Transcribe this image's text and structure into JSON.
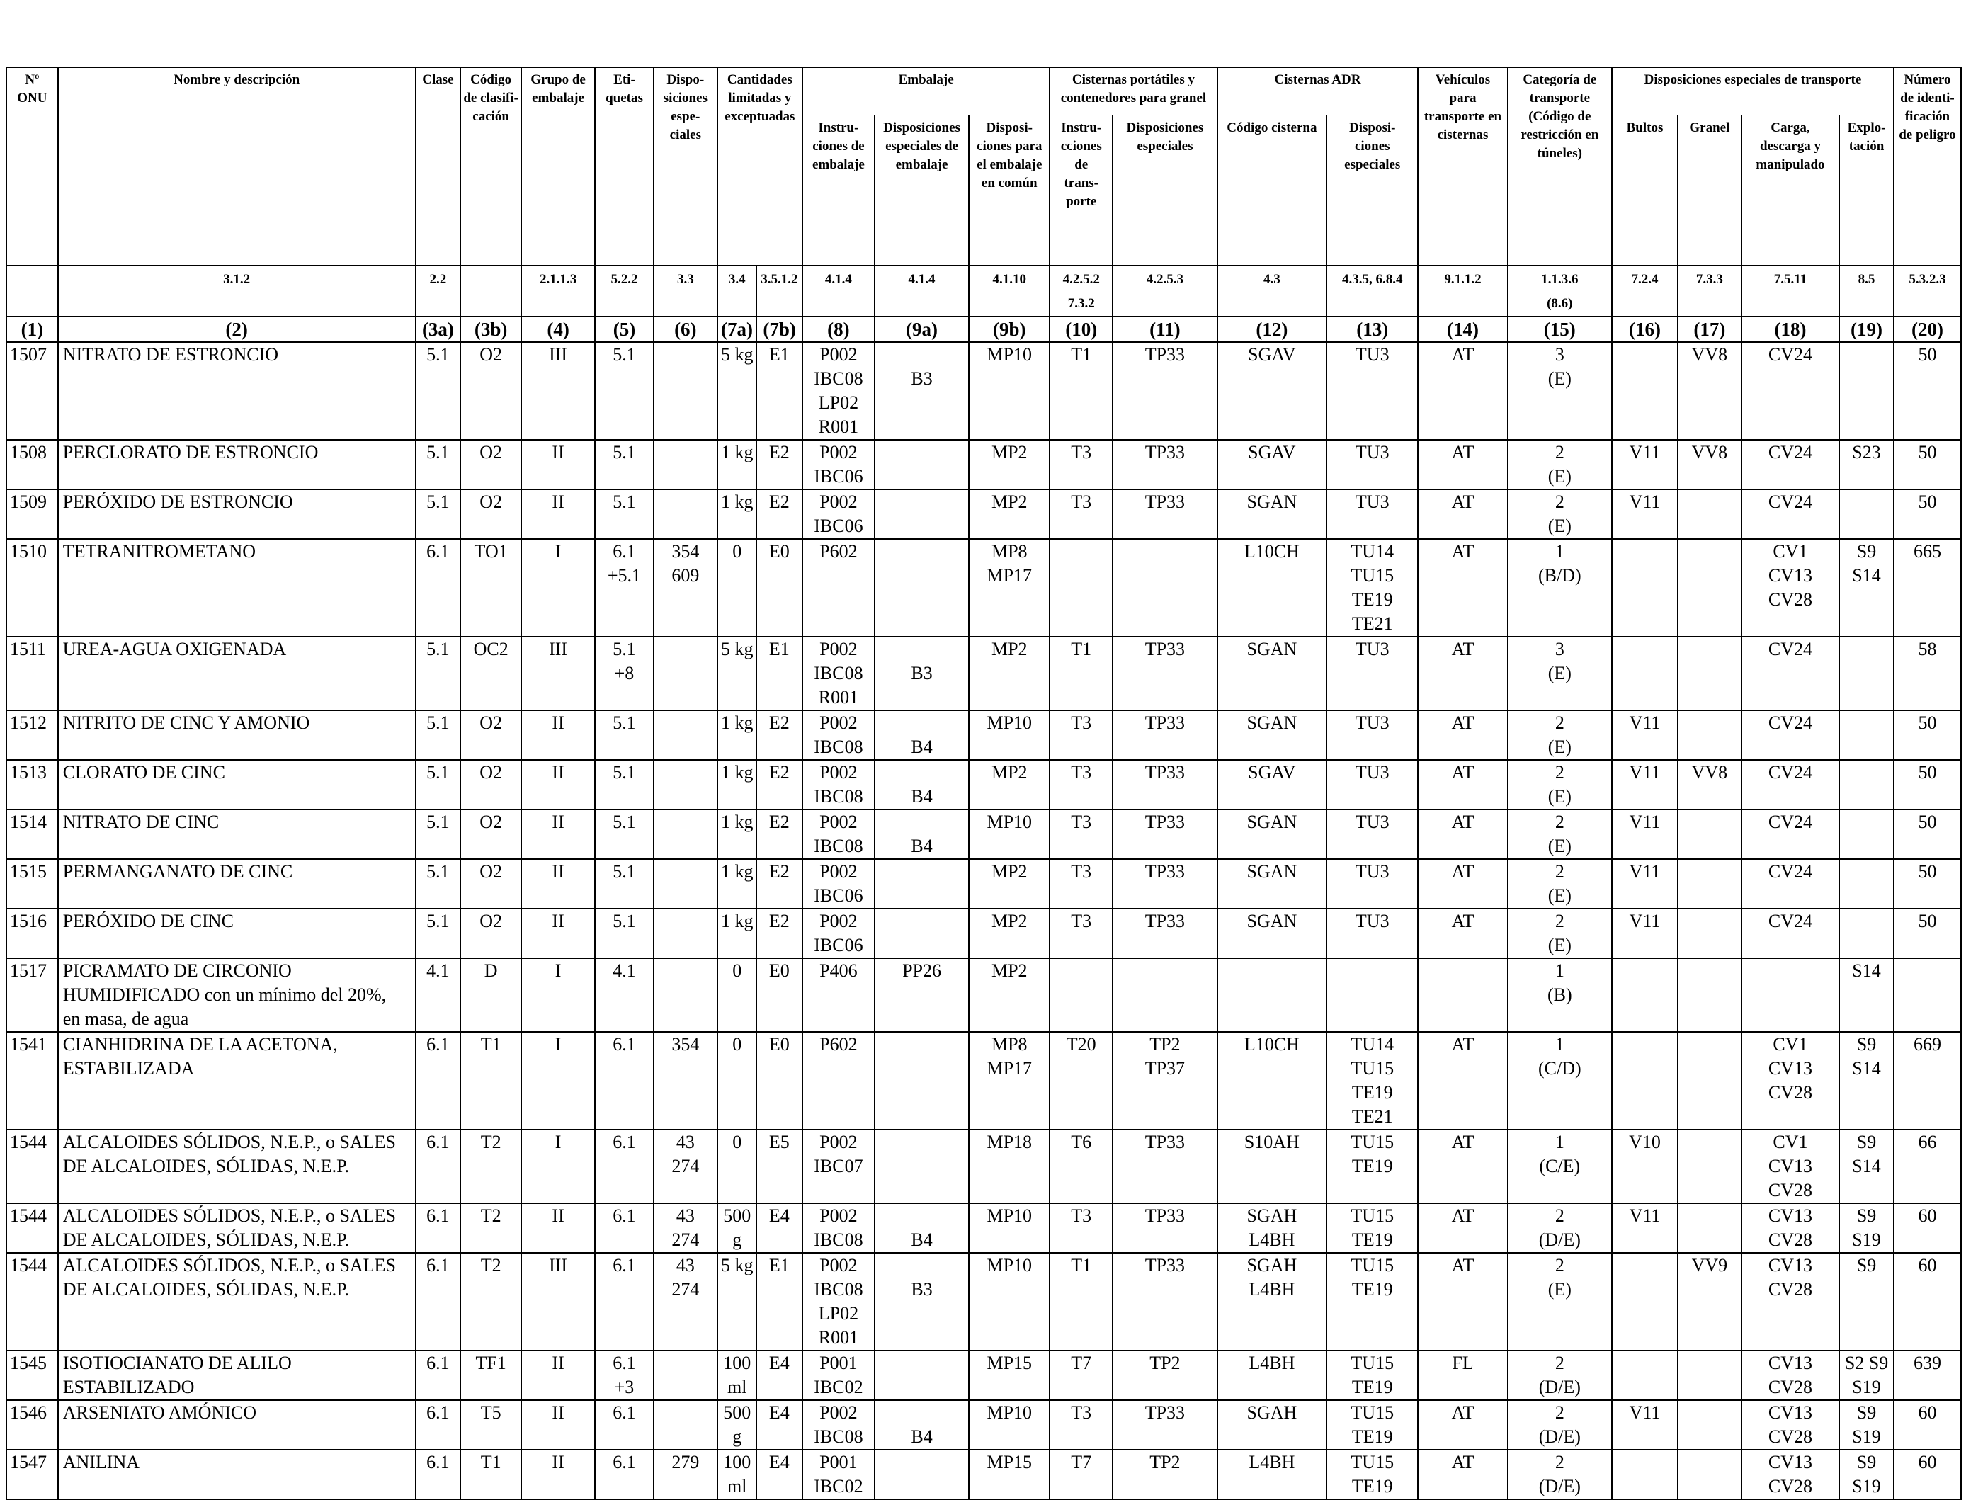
{
  "headers": {
    "onu": "Nº\nONU",
    "nombre": "Nombre y descripción",
    "clase": "Clase",
    "codigo": "Código\nde clasifi-\ncación",
    "grupo": "Grupo de\nembalaje",
    "etiquetas": "Eti-\nquetas",
    "disposiciones": "Dispo-\nsiciones\nespe-\nciales",
    "cantidades": "Cantidades\nlimitadas y\nexceptuadas",
    "embalaje": "Embalaje",
    "embalaje_instr": "Instru-\nciones de\nembalaje",
    "embalaje_disp": "Disposiciones\nespeciales de\nembalaje",
    "embalaje_comun": "Disposi-\nciones para\nel embalaje\nen común",
    "cisternas_port": "Cisternas portátiles y\ncontenedores para granel",
    "cisternas_instr": "Instru-\ncciones de\ntrans-\nporte",
    "cisternas_disp": "Disposiciones\nespeciales",
    "cisternas_adr": "Cisternas ADR",
    "adr_codigo": "Código cisterna",
    "adr_disp": "Disposi-\nciones\nespeciales",
    "vehiculos": "Vehículos\npara\ntransporte en\ncisternas",
    "categoria": "Categoría de\ntransporte\n(Código de\nrestricción en\ntúneles)",
    "disp_transporte": "Disposiciones especiales de transporte",
    "bultos": "Bultos",
    "granel": "Granel",
    "carga": "Carga,\ndescarga y\nmanipulado",
    "explotacion": "Explo-\ntación",
    "numero_peligro": "Número\nde identi-\nficación\nde peligro"
  },
  "refs": {
    "nombre": "3.1.2",
    "clase": "2.2",
    "grupo": "2.1.1.3",
    "etiquetas": "5.2.2",
    "disposiciones": "3.3",
    "c7a": "3.4",
    "c7b": "3.5.1.2",
    "c8": "4.1.4",
    "c9a": "4.1.4",
    "c9b": "4.1.10",
    "c10": "4.2.5.2\n7.3.2",
    "c11": "4.2.5.3",
    "c12": "4.3",
    "c13": "4.3.5, 6.8.4",
    "c14": "9.1.1.2",
    "c15": "1.1.3.6\n(8.6)",
    "c16": "7.2.4",
    "c17": "7.3.3",
    "c18": "7.5.11",
    "c19": "8.5",
    "c20": "5.3.2.3"
  },
  "col_numbers": [
    "(1)",
    "(2)",
    "(3a)",
    "(3b)",
    "(4)",
    "(5)",
    "(6)",
    "(7a)",
    "(7b)",
    "(8)",
    "(9a)",
    "(9b)",
    "(10)",
    "(11)",
    "(12)",
    "(13)",
    "(14)",
    "(15)",
    "(16)",
    "(17)",
    "(18)",
    "(19)",
    "(20)"
  ],
  "rows": [
    {
      "c1": "1507",
      "c2": "NITRATO DE ESTRONCIO",
      "c3a": "5.1",
      "c3b": "O2",
      "c4": "III",
      "c5": "5.1",
      "c6": "",
      "c7a": "5 kg",
      "c7b": "E1",
      "c8": "P002\nIBC08\nLP02\nR001",
      "c9a": "\nB3",
      "c9b": "MP10",
      "c10": "T1",
      "c11": "TP33",
      "c12": "SGAV",
      "c13": "TU3",
      "c14": "AT",
      "c15": "3\n(E)",
      "c16": "",
      "c17": "VV8",
      "c18": "CV24",
      "c19": "",
      "c20": "50"
    },
    {
      "c1": "1508",
      "c2": "PERCLORATO DE ESTRONCIO",
      "c3a": "5.1",
      "c3b": "O2",
      "c4": "II",
      "c5": "5.1",
      "c6": "",
      "c7a": "1 kg",
      "c7b": "E2",
      "c8": "P002\nIBC06",
      "c9a": "",
      "c9b": "MP2",
      "c10": "T3",
      "c11": "TP33",
      "c12": "SGAV",
      "c13": "TU3",
      "c14": "AT",
      "c15": "2\n(E)",
      "c16": "V11",
      "c17": "VV8",
      "c18": "CV24",
      "c19": "S23",
      "c20": "50"
    },
    {
      "c1": "1509",
      "c2": "PERÓXIDO DE ESTRONCIO",
      "c3a": "5.1",
      "c3b": "O2",
      "c4": "II",
      "c5": "5.1",
      "c6": "",
      "c7a": "1 kg",
      "c7b": "E2",
      "c8": "P002\nIBC06",
      "c9a": "",
      "c9b": "MP2",
      "c10": "T3",
      "c11": "TP33",
      "c12": "SGAN",
      "c13": "TU3",
      "c14": "AT",
      "c15": "2\n(E)",
      "c16": "V11",
      "c17": "",
      "c18": "CV24",
      "c19": "",
      "c20": "50"
    },
    {
      "c1": "1510",
      "c2": "TETRANITROMETANO",
      "c3a": "6.1",
      "c3b": "TO1",
      "c4": "I",
      "c5": "6.1\n+5.1",
      "c6": "354\n609",
      "c7a": "0",
      "c7b": "E0",
      "c8": "P602",
      "c9a": "",
      "c9b": "MP8\nMP17",
      "c10": "",
      "c11": "",
      "c12": "L10CH",
      "c13": "TU14\nTU15\nTE19\nTE21",
      "c14": "AT",
      "c15": "1\n(B/D)",
      "c16": "",
      "c17": "",
      "c18": "CV1\nCV13\nCV28",
      "c19": "S9\nS14",
      "c20": "665"
    },
    {
      "c1": "1511",
      "c2": "UREA-AGUA OXIGENADA",
      "c3a": "5.1",
      "c3b": "OC2",
      "c4": "III",
      "c5": "5.1\n+8",
      "c6": "",
      "c7a": "5 kg",
      "c7b": "E1",
      "c8": "P002\nIBC08\nR001",
      "c9a": "\nB3",
      "c9b": "MP2",
      "c10": "T1",
      "c11": "TP33",
      "c12": "SGAN",
      "c13": "TU3",
      "c14": "AT",
      "c15": "3\n(E)",
      "c16": "",
      "c17": "",
      "c18": "CV24",
      "c19": "",
      "c20": "58"
    },
    {
      "c1": "1512",
      "c2": "NITRITO DE CINC Y AMONIO",
      "c3a": "5.1",
      "c3b": "O2",
      "c4": "II",
      "c5": "5.1",
      "c6": "",
      "c7a": "1 kg",
      "c7b": "E2",
      "c8": "P002\nIBC08",
      "c9a": "\nB4",
      "c9b": "MP10",
      "c10": "T3",
      "c11": "TP33",
      "c12": "SGAN",
      "c13": "TU3",
      "c14": "AT",
      "c15": "2\n(E)",
      "c16": "V11",
      "c17": "",
      "c18": "CV24",
      "c19": "",
      "c20": "50"
    },
    {
      "c1": "1513",
      "c2": "CLORATO DE CINC",
      "c3a": "5.1",
      "c3b": "O2",
      "c4": "II",
      "c5": "5.1",
      "c6": "",
      "c7a": "1 kg",
      "c7b": "E2",
      "c8": "P002\nIBC08",
      "c9a": "\nB4",
      "c9b": "MP2",
      "c10": "T3",
      "c11": "TP33",
      "c12": "SGAV",
      "c13": "TU3",
      "c14": "AT",
      "c15": "2\n(E)",
      "c16": "V11",
      "c17": "VV8",
      "c18": "CV24",
      "c19": "",
      "c20": "50"
    },
    {
      "c1": "1514",
      "c2": "NITRATO DE CINC",
      "c3a": "5.1",
      "c3b": "O2",
      "c4": "II",
      "c5": "5.1",
      "c6": "",
      "c7a": "1 kg",
      "c7b": "E2",
      "c8": "P002\nIBC08",
      "c9a": "\nB4",
      "c9b": "MP10",
      "c10": "T3",
      "c11": "TP33",
      "c12": "SGAN",
      "c13": "TU3",
      "c14": "AT",
      "c15": "2\n(E)",
      "c16": "V11",
      "c17": "",
      "c18": "CV24",
      "c19": "",
      "c20": "50"
    },
    {
      "c1": "1515",
      "c2": "PERMANGANATO DE CINC",
      "c3a": "5.1",
      "c3b": "O2",
      "c4": "II",
      "c5": "5.1",
      "c6": "",
      "c7a": "1 kg",
      "c7b": "E2",
      "c8": "P002\nIBC06",
      "c9a": "",
      "c9b": "MP2",
      "c10": "T3",
      "c11": "TP33",
      "c12": "SGAN",
      "c13": "TU3",
      "c14": "AT",
      "c15": "2\n(E)",
      "c16": "V11",
      "c17": "",
      "c18": "CV24",
      "c19": "",
      "c20": "50"
    },
    {
      "c1": "1516",
      "c2": "PERÓXIDO DE CINC",
      "c3a": "5.1",
      "c3b": "O2",
      "c4": "II",
      "c5": "5.1",
      "c6": "",
      "c7a": "1 kg",
      "c7b": "E2",
      "c8": "P002\nIBC06",
      "c9a": "",
      "c9b": "MP2",
      "c10": "T3",
      "c11": "TP33",
      "c12": "SGAN",
      "c13": "TU3",
      "c14": "AT",
      "c15": "2\n(E)",
      "c16": "V11",
      "c17": "",
      "c18": "CV24",
      "c19": "",
      "c20": "50"
    },
    {
      "c1": "1517",
      "c2": "PICRAMATO DE CIRCONIO\nHUMIDIFICADO con un mínimo del 20%,\nen masa, de agua",
      "c3a": "4.1",
      "c3b": "D",
      "c4": "I",
      "c5": "4.1",
      "c6": "",
      "c7a": "0",
      "c7b": "E0",
      "c8": "P406",
      "c9a": "PP26",
      "c9b": "MP2",
      "c10": "",
      "c11": "",
      "c12": "",
      "c13": "",
      "c14": "",
      "c15": "1\n(B)",
      "c16": "",
      "c17": "",
      "c18": "",
      "c19": "S14",
      "c20": ""
    },
    {
      "c1": "1541",
      "c2": "CIANHIDRINA DE LA ACETONA,\nESTABILIZADA",
      "c3a": "6.1",
      "c3b": "T1",
      "c4": "I",
      "c5": "6.1",
      "c6": "354",
      "c7a": "0",
      "c7b": "E0",
      "c8": "P602",
      "c9a": "",
      "c9b": "MP8\nMP17",
      "c10": "T20",
      "c11": "TP2\nTP37",
      "c12": "L10CH",
      "c13": "TU14\nTU15\nTE19\nTE21",
      "c14": "AT",
      "c15": "1\n(C/D)",
      "c16": "",
      "c17": "",
      "c18": "CV1\nCV13\nCV28",
      "c19": "S9\nS14",
      "c20": "669"
    },
    {
      "c1": "1544",
      "c2": "ALCALOIDES SÓLIDOS, N.E.P., o SALES\nDE ALCALOIDES, SÓLIDAS, N.E.P.",
      "c3a": "6.1",
      "c3b": "T2",
      "c4": "I",
      "c5": "6.1",
      "c6": "43\n274",
      "c7a": "0",
      "c7b": "E5",
      "c8": "P002\nIBC07",
      "c9a": "",
      "c9b": "MP18",
      "c10": "T6",
      "c11": "TP33",
      "c12": "S10AH",
      "c13": "TU15\nTE19",
      "c14": "AT",
      "c15": "1\n(C/E)",
      "c16": "V10",
      "c17": "",
      "c18": "CV1\nCV13\nCV28",
      "c19": "S9\nS14",
      "c20": "66"
    },
    {
      "c1": "1544",
      "c2": "ALCALOIDES SÓLIDOS, N.E.P., o SALES\nDE ALCALOIDES, SÓLIDAS, N.E.P.",
      "c3a": "6.1",
      "c3b": "T2",
      "c4": "II",
      "c5": "6.1",
      "c6": "43\n274",
      "c7a": "500\ng",
      "c7b": "E4",
      "c8": "P002\nIBC08",
      "c9a": "\nB4",
      "c9b": "MP10",
      "c10": "T3",
      "c11": "TP33",
      "c12": "SGAH\nL4BH",
      "c13": "TU15\nTE19",
      "c14": "AT",
      "c15": "2\n(D/E)",
      "c16": "V11",
      "c17": "",
      "c18": "CV13\nCV28",
      "c19": "S9\nS19",
      "c20": "60"
    },
    {
      "c1": "1544",
      "c2": "ALCALOIDES SÓLIDOS, N.E.P., o SALES\nDE ALCALOIDES, SÓLIDAS, N.E.P.",
      "c3a": "6.1",
      "c3b": "T2",
      "c4": "III",
      "c5": "6.1",
      "c6": "43\n274",
      "c7a": "5 kg",
      "c7b": "E1",
      "c8": "P002\nIBC08\nLP02\nR001",
      "c9a": "\nB3",
      "c9b": "MP10",
      "c10": "T1",
      "c11": "TP33",
      "c12": "SGAH\nL4BH",
      "c13": "TU15\nTE19",
      "c14": "AT",
      "c15": "2\n(E)",
      "c16": "",
      "c17": "VV9",
      "c18": "CV13\nCV28",
      "c19": "S9",
      "c20": "60"
    },
    {
      "c1": "1545",
      "c2": "ISOTIOCIANATO DE ALILO\nESTABILIZADO",
      "c3a": "6.1",
      "c3b": "TF1",
      "c4": "II",
      "c5": "6.1\n+3",
      "c6": "",
      "c7a": "100\nml",
      "c7b": "E4",
      "c8": "P001\nIBC02",
      "c9a": "",
      "c9b": "MP15",
      "c10": "T7",
      "c11": "TP2",
      "c12": "L4BH",
      "c13": "TU15\nTE19",
      "c14": "FL",
      "c15": "2\n(D/E)",
      "c16": "",
      "c17": "",
      "c18": "CV13\nCV28",
      "c19": "S2 S9\nS19",
      "c20": "639"
    },
    {
      "c1": "1546",
      "c2": "ARSENIATO AMÓNICO",
      "c3a": "6.1",
      "c3b": "T5",
      "c4": "II",
      "c5": "6.1",
      "c6": "",
      "c7a": "500\ng",
      "c7b": "E4",
      "c8": "P002\nIBC08",
      "c9a": "\nB4",
      "c9b": "MP10",
      "c10": "T3",
      "c11": "TP33",
      "c12": "SGAH",
      "c13": "TU15\nTE19",
      "c14": "AT",
      "c15": "2\n(D/E)",
      "c16": "V11",
      "c17": "",
      "c18": "CV13\nCV28",
      "c19": "S9\nS19",
      "c20": "60"
    },
    {
      "c1": "1547",
      "c2": "ANILINA",
      "c3a": "6.1",
      "c3b": "T1",
      "c4": "II",
      "c5": "6.1",
      "c6": "279",
      "c7a": "100\nml",
      "c7b": "E4",
      "c8": "P001\nIBC02",
      "c9a": "",
      "c9b": "MP15",
      "c10": "T7",
      "c11": "TP2",
      "c12": "L4BH",
      "c13": "TU15\nTE19",
      "c14": "AT",
      "c15": "2\n(D/E)",
      "c16": "",
      "c17": "",
      "c18": "CV13\nCV28",
      "c19": "S9\nS19",
      "c20": "60"
    }
  ]
}
